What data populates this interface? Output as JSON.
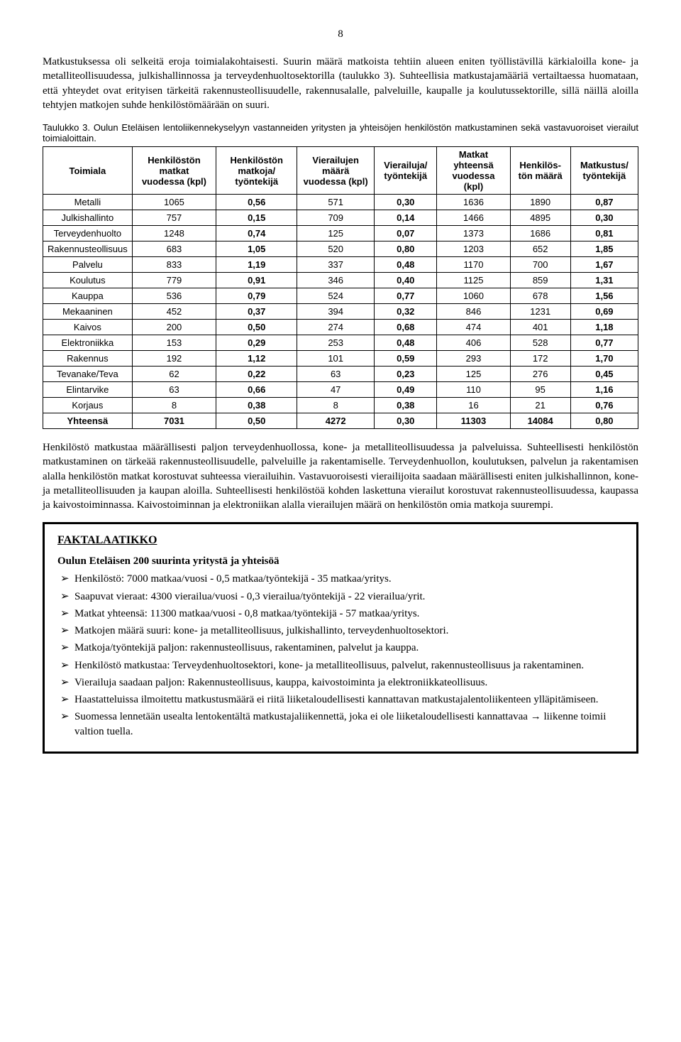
{
  "page_number": "8",
  "para1": "Matkustuksessa oli selkeitä eroja toimialakohtaisesti. Suurin määrä matkoista tehtiin alueen eniten työllistävillä kärkialoilla kone- ja metalliteollisuudessa, julkishallinnossa ja terveydenhuoltosektorilla (taulukko 3). Suhteellisia matkustajamääriä vertailtaessa huomataan, että yhteydet ovat erityisen tärkeitä rakennusteollisuudelle, rakennusalalle, palveluille, kaupalle ja koulutussektorille, sillä näillä aloilla tehtyjen matkojen suhde henkilöstömäärään on suuri.",
  "table_caption": "Taulukko 3. Oulun Eteläisen lentoliikennekyselyyn vastanneiden yritysten ja yhteisöjen henkilöstön matkustaminen sekä vastavuoroiset vierailut toimialoittain.",
  "table": {
    "headers": [
      "Toimiala",
      "Henkilöstön matkat vuodessa (kpl)",
      "Henkilöstön matkoja/ työntekijä",
      "Vierailujen määrä vuodessa (kpl)",
      "Vierailuja/ työntekijä",
      "Matkat yhteensä vuodessa (kpl)",
      "Henkilös-tön määrä",
      "Matkustus/ työntekijä"
    ],
    "rows": [
      [
        "Metalli",
        "1065",
        "0,56",
        "571",
        "0,30",
        "1636",
        "1890",
        "0,87"
      ],
      [
        "Julkishallinto",
        "757",
        "0,15",
        "709",
        "0,14",
        "1466",
        "4895",
        "0,30"
      ],
      [
        "Terveydenhuolto",
        "1248",
        "0,74",
        "125",
        "0,07",
        "1373",
        "1686",
        "0,81"
      ],
      [
        "Rakennusteollisuus",
        "683",
        "1,05",
        "520",
        "0,80",
        "1203",
        "652",
        "1,85"
      ],
      [
        "Palvelu",
        "833",
        "1,19",
        "337",
        "0,48",
        "1170",
        "700",
        "1,67"
      ],
      [
        "Koulutus",
        "779",
        "0,91",
        "346",
        "0,40",
        "1125",
        "859",
        "1,31"
      ],
      [
        "Kauppa",
        "536",
        "0,79",
        "524",
        "0,77",
        "1060",
        "678",
        "1,56"
      ],
      [
        "Mekaaninen",
        "452",
        "0,37",
        "394",
        "0,32",
        "846",
        "1231",
        "0,69"
      ],
      [
        "Kaivos",
        "200",
        "0,50",
        "274",
        "0,68",
        "474",
        "401",
        "1,18"
      ],
      [
        "Elektroniikka",
        "153",
        "0,29",
        "253",
        "0,48",
        "406",
        "528",
        "0,77"
      ],
      [
        "Rakennus",
        "192",
        "1,12",
        "101",
        "0,59",
        "293",
        "172",
        "1,70"
      ],
      [
        "Tevanake/Teva",
        "62",
        "0,22",
        "63",
        "0,23",
        "125",
        "276",
        "0,45"
      ],
      [
        "Elintarvike",
        "63",
        "0,66",
        "47",
        "0,49",
        "110",
        "95",
        "1,16"
      ],
      [
        "Korjaus",
        "8",
        "0,38",
        "8",
        "0,38",
        "16",
        "21",
        "0,76"
      ],
      [
        "Yhteensä",
        "7031",
        "0,50",
        "4272",
        "0,30",
        "11303",
        "14084",
        "0,80"
      ]
    ],
    "bold_cols_by_row": {
      "default_bold": [
        2,
        4,
        7
      ],
      "total_bold": [
        0,
        1,
        2,
        3,
        4,
        5,
        6,
        7
      ]
    }
  },
  "para2": "Henkilöstö matkustaa määrällisesti paljon terveydenhuollossa, kone- ja metalliteollisuudessa ja palveluissa. Suhteellisesti henkilöstön matkustaminen on tärkeää rakennusteollisuudelle, palveluille ja rakentamiselle. Terveydenhuollon, koulutuksen, palvelun ja rakentamisen alalla henkilöstön matkat korostuvat suhteessa vierailuihin. Vastavuoroisesti vierailijoita saadaan määrällisesti eniten julkishallinnon, kone- ja metalliteollisuuden ja kaupan aloilla. Suhteellisesti henkilöstöä kohden laskettuna vierailut korostuvat rakennusteollisuudessa, kaupassa ja kaivostoiminnassa. Kaivostoiminnan ja elektroniikan alalla vierailujen määrä on henkilöstön omia matkoja suurempi.",
  "factbox": {
    "title": "FAKTALAATIKKO",
    "subtitle": "Oulun Eteläisen 200 suurinta yritystä ja yhteisöä",
    "items": [
      "Henkilöstö: 7000 matkaa/vuosi - 0,5 matkaa/työntekijä - 35 matkaa/yritys.",
      "Saapuvat vieraat: 4300 vierailua/vuosi - 0,3 vierailua/työntekijä - 22 vierailua/yrit.",
      "Matkat yhteensä: 11300 matkaa/vuosi - 0,8 matkaa/työntekijä - 57 matkaa/yritys.",
      "Matkojen määrä suuri: kone- ja metalliteollisuus, julkishallinto, terveydenhuoltosektori.",
      "Matkoja/työntekijä paljon: rakennusteollisuus, rakentaminen, palvelut ja kauppa.",
      "Henkilöstö matkustaa: Terveydenhuoltosektori, kone- ja metalliteollisuus, palvelut, rakennusteollisuus ja rakentaminen.",
      "Vierailuja saadaan paljon: Rakennusteollisuus, kauppa, kaivostoiminta ja elektroniikkateollisuus.",
      "Haastatteluissa ilmoitettu matkustusmäärä ei riitä liiketaloudellisesti kannattavan matkustajalentoliikenteen ylläpitämiseen.",
      "Suomessa lennetään usealta lentokentältä matkustajaliikennettä, joka ei ole liiketaloudellisesti kannattavaa → liikenne toimii valtion tuella."
    ]
  }
}
